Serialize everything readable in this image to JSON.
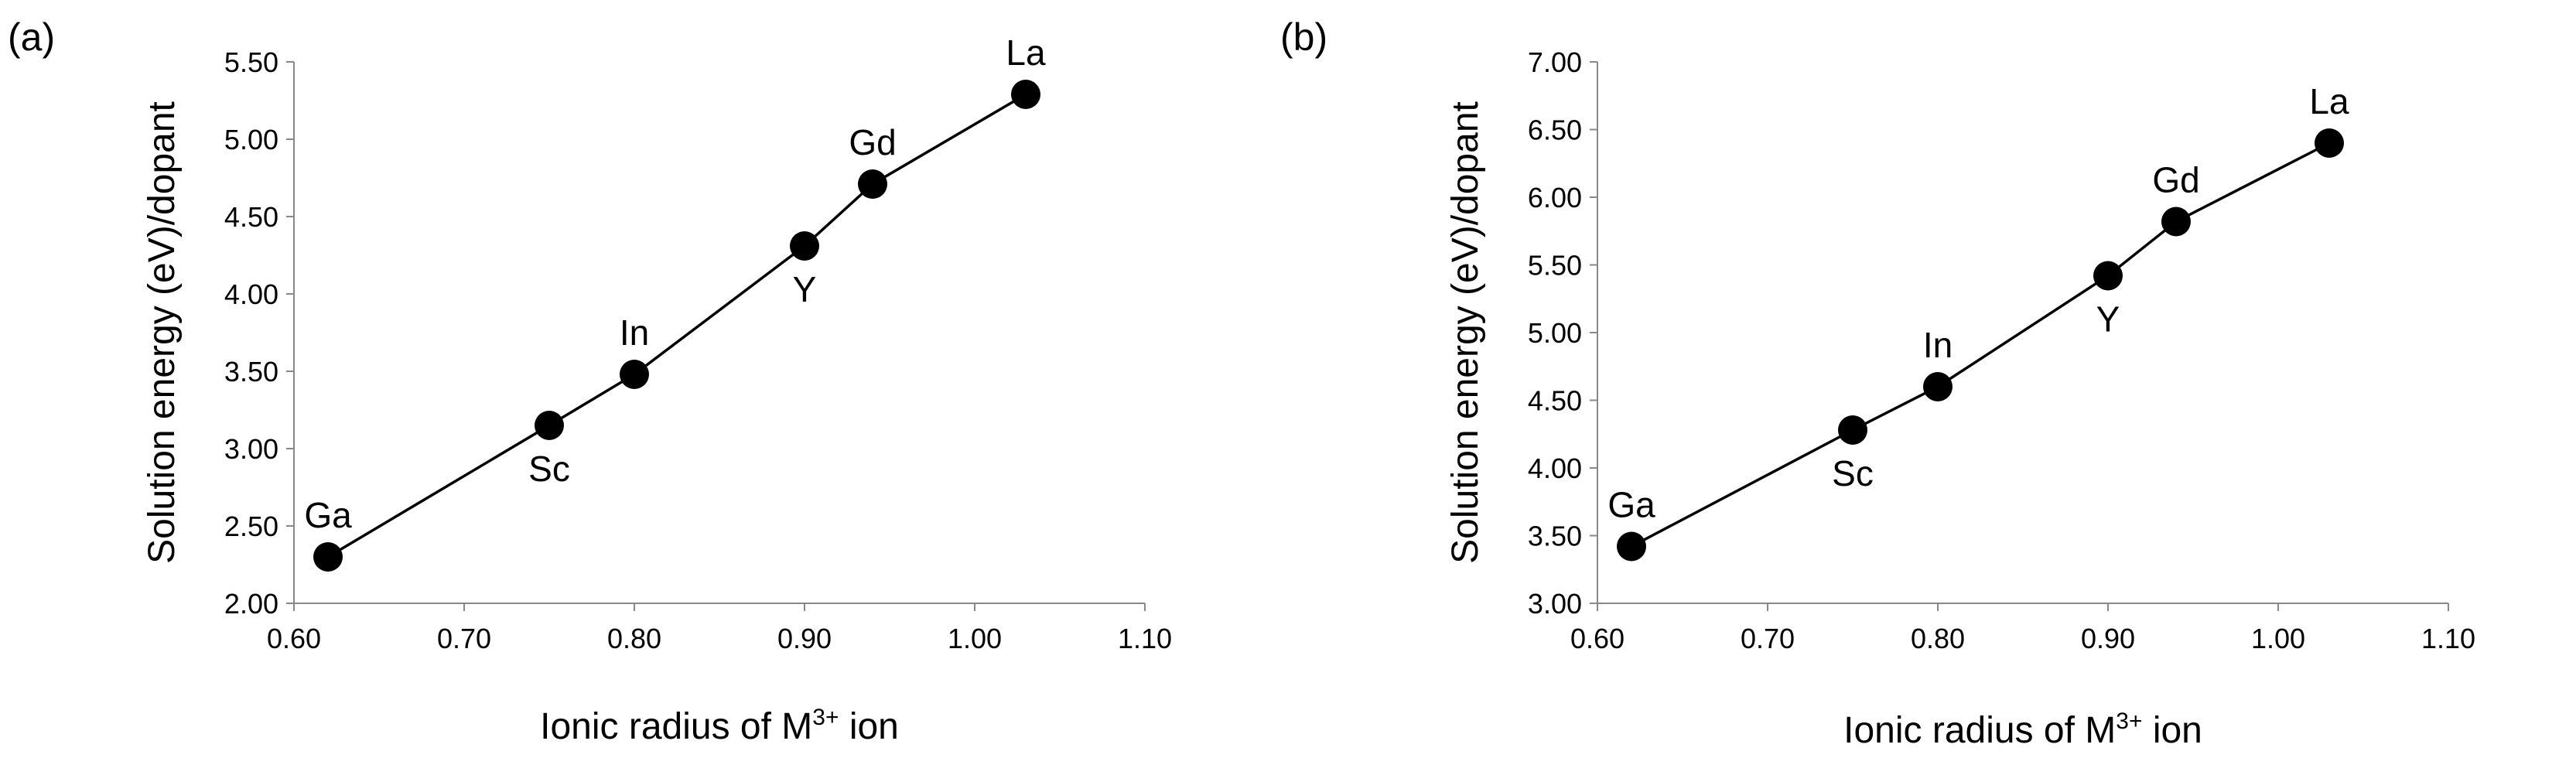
{
  "chart_data": [
    {
      "type": "line",
      "panel_label": "(a)",
      "xlabel_prefix": "Ionic radius of M",
      "xlabel_sup": "3+",
      "xlabel_suffix": " ion",
      "ylabel": "Solution energy (eV)/dopant",
      "xlim": [
        0.6,
        1.1
      ],
      "ylim": [
        2.0,
        5.5
      ],
      "x_ticks": [
        "0.60",
        "0.70",
        "0.80",
        "0.90",
        "1.00",
        "1.10"
      ],
      "y_ticks": [
        "2.00",
        "2.50",
        "3.00",
        "3.50",
        "4.00",
        "4.50",
        "5.00",
        "5.50"
      ],
      "grid": false,
      "points": [
        {
          "label": "Ga",
          "x": 0.62,
          "y": 2.3,
          "label_pos": "above"
        },
        {
          "label": "Sc",
          "x": 0.75,
          "y": 3.15,
          "label_pos": "below"
        },
        {
          "label": "In",
          "x": 0.8,
          "y": 3.48,
          "label_pos": "above"
        },
        {
          "label": "Y",
          "x": 0.9,
          "y": 4.31,
          "label_pos": "below"
        },
        {
          "label": "Gd",
          "x": 0.94,
          "y": 4.71,
          "label_pos": "above"
        },
        {
          "label": "La",
          "x": 1.03,
          "y": 5.29,
          "label_pos": "above"
        }
      ]
    },
    {
      "type": "line",
      "panel_label": "(b)",
      "xlabel_prefix": "Ionic radius of M",
      "xlabel_sup": "3+",
      "xlabel_suffix": " ion",
      "ylabel": "Solution energy (eV)/dopant",
      "xlim": [
        0.6,
        1.1
      ],
      "ylim": [
        3.0,
        7.0
      ],
      "x_ticks": [
        "0.60",
        "0.70",
        "0.80",
        "0.90",
        "1.00",
        "1.10"
      ],
      "y_ticks": [
        "3.00",
        "3.50",
        "4.00",
        "4.50",
        "5.00",
        "5.50",
        "6.00",
        "6.50",
        "7.00"
      ],
      "grid": false,
      "points": [
        {
          "label": "Ga",
          "x": 0.62,
          "y": 3.42,
          "label_pos": "above"
        },
        {
          "label": "Sc",
          "x": 0.75,
          "y": 4.28,
          "label_pos": "below"
        },
        {
          "label": "In",
          "x": 0.8,
          "y": 4.6,
          "label_pos": "above"
        },
        {
          "label": "Y",
          "x": 0.9,
          "y": 5.42,
          "label_pos": "below"
        },
        {
          "label": "Gd",
          "x": 0.94,
          "y": 5.82,
          "label_pos": "above"
        },
        {
          "label": "La",
          "x": 1.03,
          "y": 6.4,
          "label_pos": "above"
        }
      ]
    }
  ]
}
